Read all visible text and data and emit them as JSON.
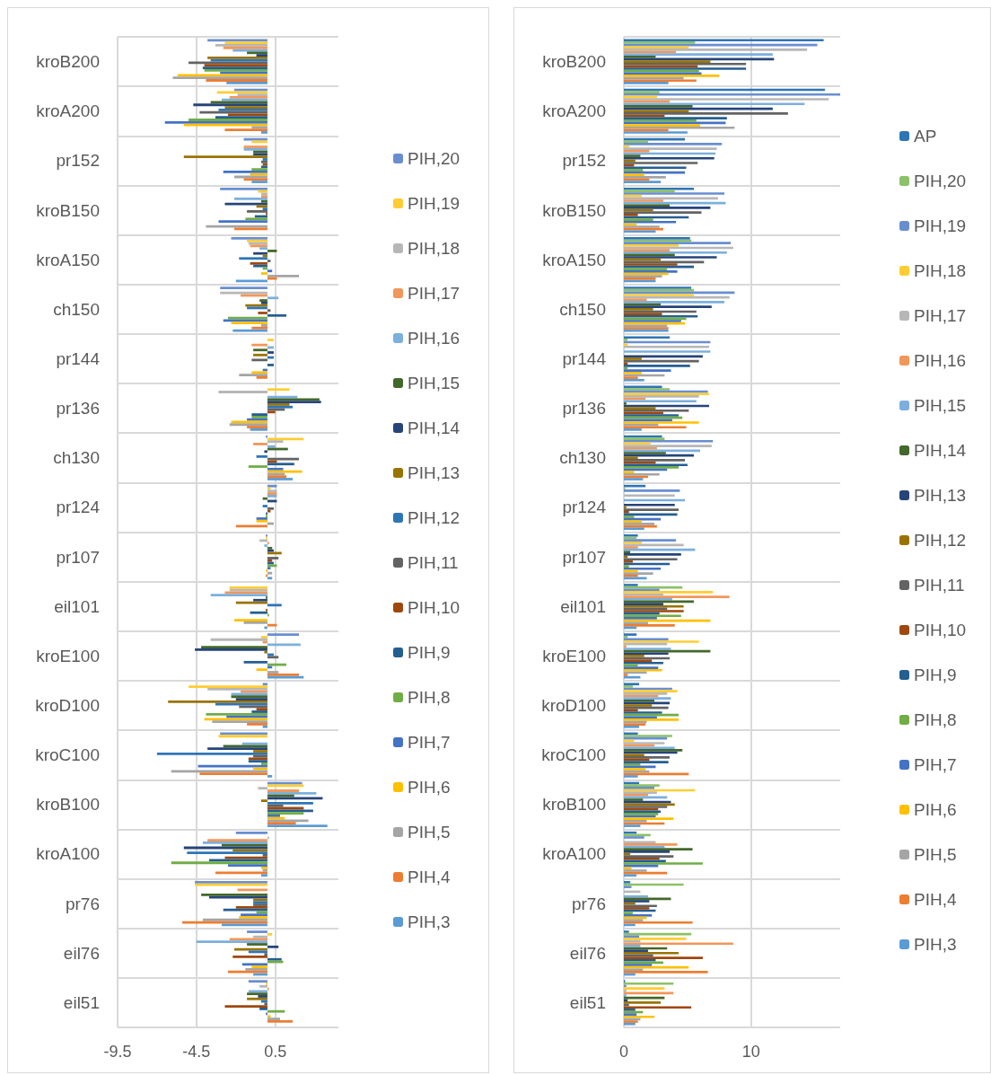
{
  "chart_data": [
    {
      "type": "bar",
      "orientation": "horizontal",
      "categories": [
        "kroB200",
        "kroA200",
        "pr152",
        "kroB150",
        "kroA150",
        "ch150",
        "pr144",
        "pr136",
        "ch130",
        "pr124",
        "pr107",
        "eil101",
        "kroE100",
        "kroD100",
        "kroC100",
        "kroB100",
        "kroA100",
        "pr76",
        "eil76",
        "eil51"
      ],
      "xlim": [
        -9.5,
        4.5
      ],
      "xticks": [
        -9.5,
        -4.5,
        0.5
      ],
      "grid": true,
      "legend": "right",
      "series": [
        {
          "name": "PIH,20",
          "color": "#698ed0",
          "values": [
            -3.8,
            -2.1,
            -1.5,
            -3.0,
            -2.3,
            -3.0,
            0,
            0,
            -0.1,
            0.6,
            -0.1,
            0,
            2.0,
            -0.3,
            -3.0,
            2.2,
            -2.0,
            -4.6,
            -1.3,
            -1.2
          ]
        },
        {
          "name": "PIH,19",
          "color": "#ffcd33",
          "values": [
            -2.7,
            -3.2,
            -1.0,
            -0.6,
            -1.3,
            0,
            0.4,
            1.4,
            2.3,
            0.2,
            -0.1,
            -2.4,
            -0.4,
            -5.0,
            -3.1,
            2.3,
            0,
            -4.6,
            0.3,
            -0.1
          ]
        },
        {
          "name": "PIH,18",
          "color": "#b7b7b7",
          "values": [
            -3.3,
            -1.9,
            0,
            -0.4,
            -1.2,
            -3.0,
            0,
            -3.1,
            1.0,
            0.6,
            -0.5,
            -2.4,
            -3.6,
            -3.8,
            0,
            -0.6,
            0.1,
            0,
            -0.9,
            -0.5
          ]
        },
        {
          "name": "PIH,17",
          "color": "#f1975a",
          "values": [
            -2.8,
            -2.4,
            -1.5,
            -0.4,
            -1.1,
            -1.7,
            -1.0,
            0,
            -0.9,
            0.6,
            0.1,
            -2.7,
            -0.3,
            -1.7,
            0,
            2.0,
            -3.8,
            -1.9,
            -2.4,
            0.1
          ]
        },
        {
          "name": "PIH,16",
          "color": "#7cafdd",
          "values": [
            -2.2,
            -2.9,
            -1.5,
            -2.1,
            -0.5,
            0.7,
            0.4,
            1.9,
            0.5,
            0.6,
            -0.2,
            -3.6,
            2.1,
            -2.3,
            -1.6,
            3.1,
            -4.1,
            0,
            -4.5,
            -1.2
          ]
        },
        {
          "name": "PIH,15",
          "color": "#43682b",
          "values": [
            -1.3,
            -3.6,
            -0.9,
            -0.4,
            0.6,
            -0.5,
            -0.9,
            3.3,
            1.3,
            -0.3,
            0.3,
            -0.1,
            -4.2,
            -2.3,
            -2.8,
            1.7,
            -2.9,
            -4.2,
            -1.3,
            -1.3
          ]
        },
        {
          "name": "PIH,14",
          "color": "#264478",
          "values": [
            -0.7,
            -4.7,
            -0.9,
            -2.7,
            -0.9,
            -0.4,
            0.4,
            3.4,
            -0.2,
            0.6,
            0.4,
            -0.9,
            -4.6,
            -2.0,
            -3.8,
            3.5,
            -5.3,
            -3.7,
            0.7,
            -0.6
          ]
        },
        {
          "name": "PIH,13",
          "color": "#997300",
          "values": [
            -3.8,
            -2.7,
            -5.3,
            -0.7,
            -0.3,
            -1.4,
            -0.9,
            1.4,
            0,
            0,
            0.9,
            -2.0,
            -0.2,
            -6.3,
            -0.9,
            -0.4,
            -2.2,
            -0.9,
            -2.1,
            -1.3
          ]
        },
        {
          "name": "PIH,12",
          "color": "#2e75b6",
          "values": [
            -3.6,
            -3.1,
            -0.3,
            -0.3,
            -1.8,
            -1.3,
            0.4,
            1.6,
            -0.7,
            -0.3,
            0,
            0.9,
            0.4,
            -3.3,
            -7.0,
            2.9,
            -5.1,
            -0.9,
            -1.2,
            -0.4
          ]
        },
        {
          "name": "PIH,11",
          "color": "#636363",
          "values": [
            -5.0,
            -4.3,
            -0.4,
            -1.3,
            0.2,
            0.2,
            -1.0,
            1.1,
            2.0,
            0.4,
            0.7,
            0,
            0.7,
            -1.8,
            -0.9,
            1.0,
            -0.3,
            -0.9,
            -0.2,
            -0.2
          ]
        },
        {
          "name": "PIH,10",
          "color": "#9e480e",
          "values": [
            -4.0,
            -2.5,
            -0.3,
            -0.1,
            -1.1,
            -0.6,
            0,
            0.5,
            0.6,
            0.2,
            0.3,
            -0.1,
            0,
            -0.7,
            -1.2,
            2.3,
            -2.7,
            -2.0,
            -2.2,
            -2.7
          ]
        },
        {
          "name": "PIH,9",
          "color": "#255e91",
          "values": [
            -4.1,
            -3.3,
            -0.4,
            -0.8,
            -0.9,
            1.2,
            0.4,
            -1.0,
            1.7,
            -0.1,
            0.4,
            -1.1,
            -1.5,
            -1.0,
            -1.2,
            2.9,
            -3.7,
            -2.8,
            0.9,
            -0.5
          ]
        },
        {
          "name": "PIH,8",
          "color": "#70ad47",
          "values": [
            -4.0,
            -5.0,
            -1.0,
            -1.4,
            -0.3,
            -2.5,
            0,
            -1.0,
            -1.2,
            -0.1,
            0.6,
            0.1,
            1.2,
            -3.9,
            -0.4,
            2.3,
            -6.1,
            -0.7,
            1.0,
            1.1
          ]
        },
        {
          "name": "PIH,7",
          "color": "#4472c4",
          "values": [
            -3.0,
            -6.5,
            -2.8,
            -3.1,
            0.3,
            -2.8,
            -0.3,
            -1.3,
            1.0,
            -0.7,
            0.2,
            0,
            0.3,
            -2.6,
            -4.4,
            0.8,
            -2.5,
            -1.7,
            -1.6,
            -0.1
          ]
        },
        {
          "name": "PIH,6",
          "color": "#ffc000",
          "values": [
            -5.7,
            -5.3,
            -1.1,
            0,
            -0.4,
            -2.3,
            -1.0,
            -2.3,
            2.2,
            -0.7,
            -0.1,
            -2.1,
            -0.7,
            -4.0,
            -0.9,
            1.1,
            -0.4,
            -1.8,
            -1.0,
            0.2
          ]
        },
        {
          "name": "PIH,5",
          "color": "#a5a5a5",
          "values": [
            -6.0,
            -1.0,
            -2.1,
            -3.9,
            2.0,
            -0.4,
            -1.8,
            -2.4,
            1.1,
            0.4,
            0.3,
            -1.5,
            0.7,
            -3.5,
            -6.1,
            2.6,
            -0.3,
            -4.1,
            -1.4,
            0.8
          ]
        },
        {
          "name": "PIH,4",
          "color": "#ed7d31",
          "values": [
            -3.9,
            -2.7,
            -1.5,
            -2.1,
            0.6,
            -1.0,
            -0.7,
            -1.3,
            1.2,
            -2.0,
            -0.1,
            0.6,
            2.0,
            -1.3,
            -4.3,
            1.8,
            -3.3,
            -5.4,
            -2.5,
            1.6
          ]
        },
        {
          "name": "PIH,3",
          "color": "#5b9bd5",
          "values": [
            -2.6,
            -0.4,
            -1.0,
            0,
            -2.0,
            -2.2,
            0,
            -1.1,
            1.6,
            0,
            0.3,
            -0.2,
            2.3,
            -0.3,
            0.3,
            3.8,
            -0.4,
            -2.9,
            -0.9,
            0
          ]
        }
      ]
    },
    {
      "type": "bar",
      "orientation": "horizontal",
      "categories": [
        "kroB200",
        "kroA200",
        "pr152",
        "kroB150",
        "kroA150",
        "ch150",
        "pr144",
        "pr136",
        "ch130",
        "pr124",
        "pr107",
        "eil101",
        "kroE100",
        "kroD100",
        "kroC100",
        "kroB100",
        "kroA100",
        "pr76",
        "eil76",
        "eil51"
      ],
      "xlim": [
        0,
        17
      ],
      "xticks": [
        0,
        10
      ],
      "grid": true,
      "legend": "right",
      "series": [
        {
          "name": "AP",
          "color": "#2e75b6",
          "values": [
            15.7,
            15.8,
            4.8,
            5.5,
            5.2,
            5.3,
            3.6,
            3.0,
            3.0,
            1.7,
            1.1,
            1.1,
            1.0,
            1.2,
            1.1,
            1.2,
            1.0,
            0.5,
            0.4,
            0.1
          ]
        },
        {
          "name": "PIH,20",
          "color": "#8cc168",
          "values": [
            5.6,
            2.8,
            1.9,
            4.0,
            5.3,
            5.5,
            0.3,
            3.6,
            3.2,
            0.1,
            1.0,
            4.6,
            0.3,
            0.7,
            3.8,
            2.8,
            2.1,
            4.7,
            5.3,
            3.9
          ]
        },
        {
          "name": "PIH,19",
          "color": "#698ed0",
          "values": [
            15.2,
            17.0,
            7.7,
            7.9,
            8.4,
            8.7,
            6.8,
            6.6,
            7.0,
            4.4,
            4.1,
            2.8,
            3.5,
            3.8,
            3.4,
            2.4,
            1.6,
            0.6,
            1.2,
            0.2
          ]
        },
        {
          "name": "PIH,18",
          "color": "#ffcd33",
          "values": [
            5.1,
            2.6,
            0.4,
            1.4,
            4.3,
            5.5,
            0.3,
            6.7,
            2.1,
            0,
            1.4,
            7.0,
            5.9,
            4.2,
            0.8,
            5.6,
            0,
            0,
            4.9,
            3.2
          ]
        },
        {
          "name": "PIH,17",
          "color": "#b7b7b7",
          "values": [
            14.4,
            16.1,
            7.3,
            7.4,
            8.6,
            8.3,
            6.7,
            5.9,
            6.9,
            4.0,
            4.7,
            3.1,
            3.4,
            3.4,
            3.2,
            2.6,
            2.5,
            1.3,
            1.3,
            0.2
          ]
        },
        {
          "name": "PIH,16",
          "color": "#f1975a",
          "values": [
            4.1,
            3.6,
            2.0,
            3.1,
            3.6,
            1.8,
            0,
            1.7,
            2.6,
            0,
            1.1,
            8.3,
            0.2,
            2.7,
            2.4,
            1.9,
            4.2,
            0,
            8.6,
            3.9
          ]
        },
        {
          "name": "PIH,15",
          "color": "#7cafdd",
          "values": [
            11.7,
            14.2,
            7.2,
            8.0,
            8.1,
            7.9,
            6.8,
            5.7,
            6.0,
            4.8,
            5.6,
            3.8,
            3.7,
            3.7,
            4.0,
            3.4,
            3.2,
            1.9,
            1.3,
            0.2
          ]
        },
        {
          "name": "PIH,14",
          "color": "#43682b",
          "values": [
            2.5,
            5.4,
            1.3,
            3.6,
            4.0,
            2.9,
            0,
            0.2,
            3.3,
            0,
            0.5,
            5.5,
            6.8,
            2.4,
            4.6,
            1.5,
            5.4,
            3.7,
            3.4,
            3.2
          ]
        },
        {
          "name": "PIH,13",
          "color": "#264478",
          "values": [
            11.8,
            11.7,
            7.1,
            6.8,
            7.3,
            6.9,
            6.2,
            6.7,
            5.5,
            4.0,
            4.5,
            3.1,
            3.5,
            3.6,
            4.2,
            3.7,
            3.6,
            2.0,
            1.9,
            0.3
          ]
        },
        {
          "name": "PIH,12",
          "color": "#997300",
          "values": [
            6.8,
            5.1,
            0.9,
            2.3,
            2.9,
            2.3,
            1.4,
            2.5,
            1.1,
            0.2,
            0.3,
            4.7,
            1.6,
            2.2,
            1.6,
            4.0,
            0.5,
            0.9,
            4.3,
            2.9
          ]
        },
        {
          "name": "PIH,11",
          "color": "#636363",
          "values": [
            9.6,
            12.9,
            5.8,
            6.1,
            6.3,
            5.7,
            5.9,
            5.1,
            4.8,
            4.3,
            4.2,
            3.4,
            3.6,
            3.5,
            3.6,
            3.4,
            3.9,
            2.6,
            2.3,
            0.4
          ]
        },
        {
          "name": "PIH,10",
          "color": "#9e480e",
          "values": [
            5.8,
            3.2,
            0.8,
            1.1,
            4.2,
            3.0,
            0.3,
            3.1,
            2.5,
            0.4,
            0.7,
            4.7,
            2.2,
            1.1,
            2.0,
            2.7,
            2.8,
            2.0,
            6.2,
            5.3
          ]
        },
        {
          "name": "PIH,9",
          "color": "#255e91",
          "values": [
            9.6,
            8.1,
            4.9,
            5.1,
            5.5,
            5.8,
            5.2,
            4.3,
            5.0,
            4.2,
            3.6,
            2.8,
            3.1,
            3.0,
            3.5,
            2.9,
            3.3,
            2.5,
            2.5,
            0.9
          ]
        },
        {
          "name": "PIH,8",
          "color": "#70ad47",
          "values": [
            5.9,
            5.7,
            1.5,
            2.3,
            3.4,
            4.9,
            0.3,
            4.6,
            4.3,
            0.8,
            0.4,
            4.5,
            1.1,
            4.3,
            1.3,
            2.7,
            6.2,
            0.7,
            3.1,
            1.5
          ]
        },
        {
          "name": "PIH,7",
          "color": "#4472c4",
          "values": [
            6.1,
            8.0,
            4.8,
            4.1,
            4.2,
            4.5,
            3.7,
            3.8,
            3.4,
            2.9,
            2.9,
            2.6,
            2.7,
            2.6,
            2.5,
            2.5,
            2.7,
            2.2,
            2.2,
            1.0
          ]
        },
        {
          "name": "PIH,6",
          "color": "#ffc000",
          "values": [
            7.5,
            6.0,
            1.6,
            1.0,
            3.5,
            4.8,
            1.4,
            5.9,
            0.8,
            1.4,
            1.1,
            6.8,
            3.0,
            4.3,
            1.7,
            3.9,
            0.6,
            1.8,
            5.1,
            2.4
          ]
        },
        {
          "name": "PIH,5",
          "color": "#a5a5a5",
          "values": [
            4.7,
            8.7,
            3.3,
            2.8,
            3.0,
            3.4,
            3.2,
            2.7,
            2.8,
            2.4,
            2.3,
            1.9,
            1.8,
            1.8,
            2.0,
            1.8,
            1.8,
            1.5,
            1.5,
            1.3
          ]
        },
        {
          "name": "PIH,4",
          "color": "#ed7d31",
          "values": [
            5.7,
            3.5,
            2.0,
            3.1,
            2.5,
            3.5,
            1.1,
            4.9,
            1.9,
            2.6,
            1.1,
            4.0,
            0.3,
            1.7,
            5.1,
            3.2,
            3.4,
            5.4,
            6.6,
            1.1
          ]
        },
        {
          "name": "PIH,3",
          "color": "#5b9bd5",
          "values": [
            3.5,
            5.0,
            2.9,
            2.5,
            2.5,
            3.5,
            1.6,
            1.4,
            1.5,
            1.6,
            1.8,
            1.0,
            1.3,
            1.2,
            1.1,
            1.3,
            1.0,
            0.9,
            0.9,
            0.9
          ]
        }
      ]
    }
  ]
}
